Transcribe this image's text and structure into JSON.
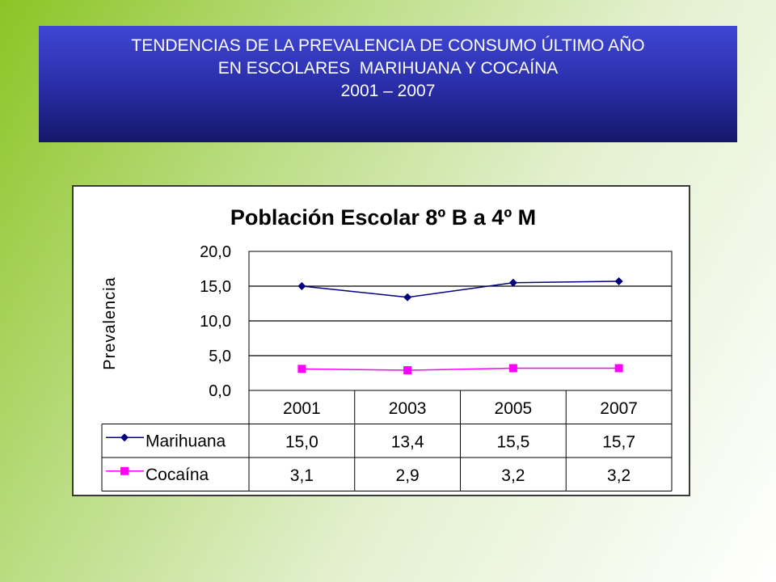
{
  "slide": {
    "title_line1": "TENDENCIAS DE LA PREVALENCIA DE CONSUMO ÚLTIMO AÑO",
    "title_line2": "EN ESCOLARES  MARIHUANA Y COCAÍNA",
    "title_line3": "2001 – 2007"
  },
  "colors": {
    "marihuana": "#000080",
    "cocaina": "#ff00ff",
    "banner_top": "#4046d4",
    "banner_bottom": "#16186a"
  },
  "chart_data": {
    "type": "line",
    "title": "Población Escolar 8º B a 4º M",
    "ylabel": "Prevalencia",
    "xlabel": "",
    "categories": [
      "2001",
      "2003",
      "2005",
      "2007"
    ],
    "ylim": [
      0,
      20
    ],
    "yticks": [
      "0,0",
      "5,0",
      "10,0",
      "15,0",
      "20,0"
    ],
    "grid": true,
    "legend": "data-table",
    "series": [
      {
        "name": "Marihuana",
        "values": [
          15.0,
          13.4,
          15.5,
          15.7
        ],
        "labels": [
          "15,0",
          "13,4",
          "15,5",
          "15,7"
        ],
        "marker": "diamond",
        "color": "#000080"
      },
      {
        "name": "Cocaína",
        "values": [
          3.1,
          2.9,
          3.2,
          3.2
        ],
        "labels": [
          "3,1",
          "2,9",
          "3,2",
          "3,2"
        ],
        "marker": "square",
        "color": "#ff00ff"
      }
    ]
  }
}
